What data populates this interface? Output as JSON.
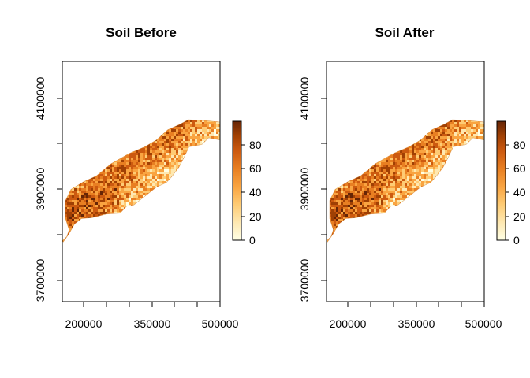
{
  "chart_data": [
    {
      "type": "heatmap",
      "title": "Soil Before",
      "xlabel": "",
      "ylabel": "",
      "x_ticks": [
        200000,
        350000,
        500000
      ],
      "y_ticks": [
        3700000,
        3900000,
        4100000
      ],
      "x_tick_labels": [
        "200000",
        "350000",
        "500000"
      ],
      "y_tick_labels": [
        "3700000",
        "3900000",
        "4100000"
      ],
      "xlim": [
        153000,
        500000
      ],
      "ylim": [
        3645000,
        4180000
      ],
      "legend": {
        "position": "right",
        "ticks": [
          0,
          20,
          40,
          60,
          80
        ],
        "tick_labels": [
          "0",
          "20",
          "40",
          "60",
          "80"
        ],
        "range": [
          0,
          100
        ]
      },
      "palette": [
        "#FFFFE5",
        "#FEE8B1",
        "#FECB74",
        "#F9A441",
        "#E87F22",
        "#CC5A10",
        "#A04004",
        "#662506"
      ],
      "region_outline": [
        [
          153000,
          3780000
        ],
        [
          163000,
          3790000
        ],
        [
          168000,
          3805000
        ],
        [
          160000,
          3830000
        ],
        [
          160000,
          3870000
        ],
        [
          172000,
          3895000
        ],
        [
          200000,
          3912000
        ],
        [
          228000,
          3925000
        ],
        [
          260000,
          3952000
        ],
        [
          300000,
          3975000
        ],
        [
          335000,
          3990000
        ],
        [
          360000,
          4005000
        ],
        [
          385000,
          4028000
        ],
        [
          412000,
          4040000
        ],
        [
          430000,
          4050000
        ],
        [
          470000,
          4048000
        ],
        [
          500000,
          4045000
        ],
        [
          500000,
          4005000
        ],
        [
          475000,
          4010000
        ],
        [
          460000,
          3995000
        ],
        [
          432000,
          3990000
        ],
        [
          420000,
          3965000
        ],
        [
          410000,
          3945000
        ],
        [
          395000,
          3925000
        ],
        [
          382000,
          3910000
        ],
        [
          360000,
          3900000
        ],
        [
          335000,
          3880000
        ],
        [
          310000,
          3860000
        ],
        [
          295000,
          3858000
        ],
        [
          280000,
          3842000
        ],
        [
          250000,
          3840000
        ],
        [
          218000,
          3832000
        ],
        [
          195000,
          3830000
        ],
        [
          180000,
          3818000
        ],
        [
          167000,
          3795000
        ],
        [
          155000,
          3778000
        ]
      ]
    },
    {
      "type": "heatmap",
      "title": "Soil After",
      "xlabel": "",
      "ylabel": "",
      "x_ticks": [
        200000,
        350000,
        500000
      ],
      "y_ticks": [
        3700000,
        3900000,
        4100000
      ],
      "x_tick_labels": [
        "200000",
        "350000",
        "500000"
      ],
      "y_tick_labels": [
        "3700000",
        "3900000",
        "4100000"
      ],
      "xlim": [
        153000,
        500000
      ],
      "ylim": [
        3645000,
        4180000
      ],
      "legend": {
        "position": "right",
        "ticks": [
          0,
          20,
          40,
          60,
          80
        ],
        "tick_labels": [
          "0",
          "20",
          "40",
          "60",
          "80"
        ],
        "range": [
          0,
          100
        ]
      },
      "palette": [
        "#FFFFE5",
        "#FEE8B1",
        "#FECB74",
        "#F9A441",
        "#E87F22",
        "#CC5A10",
        "#A04004",
        "#662506"
      ],
      "region_outline": [
        [
          153000,
          3780000
        ],
        [
          163000,
          3790000
        ],
        [
          168000,
          3805000
        ],
        [
          160000,
          3830000
        ],
        [
          160000,
          3870000
        ],
        [
          172000,
          3895000
        ],
        [
          200000,
          3912000
        ],
        [
          228000,
          3925000
        ],
        [
          260000,
          3952000
        ],
        [
          300000,
          3975000
        ],
        [
          335000,
          3990000
        ],
        [
          360000,
          4005000
        ],
        [
          385000,
          4028000
        ],
        [
          412000,
          4040000
        ],
        [
          430000,
          4050000
        ],
        [
          470000,
          4048000
        ],
        [
          500000,
          4045000
        ],
        [
          500000,
          4005000
        ],
        [
          475000,
          4010000
        ],
        [
          460000,
          3995000
        ],
        [
          432000,
          3990000
        ],
        [
          420000,
          3965000
        ],
        [
          410000,
          3945000
        ],
        [
          395000,
          3925000
        ],
        [
          382000,
          3910000
        ],
        [
          360000,
          3900000
        ],
        [
          335000,
          3880000
        ],
        [
          310000,
          3860000
        ],
        [
          295000,
          3858000
        ],
        [
          280000,
          3842000
        ],
        [
          250000,
          3840000
        ],
        [
          218000,
          3832000
        ],
        [
          195000,
          3830000
        ],
        [
          180000,
          3818000
        ],
        [
          167000,
          3795000
        ],
        [
          155000,
          3778000
        ]
      ]
    }
  ]
}
